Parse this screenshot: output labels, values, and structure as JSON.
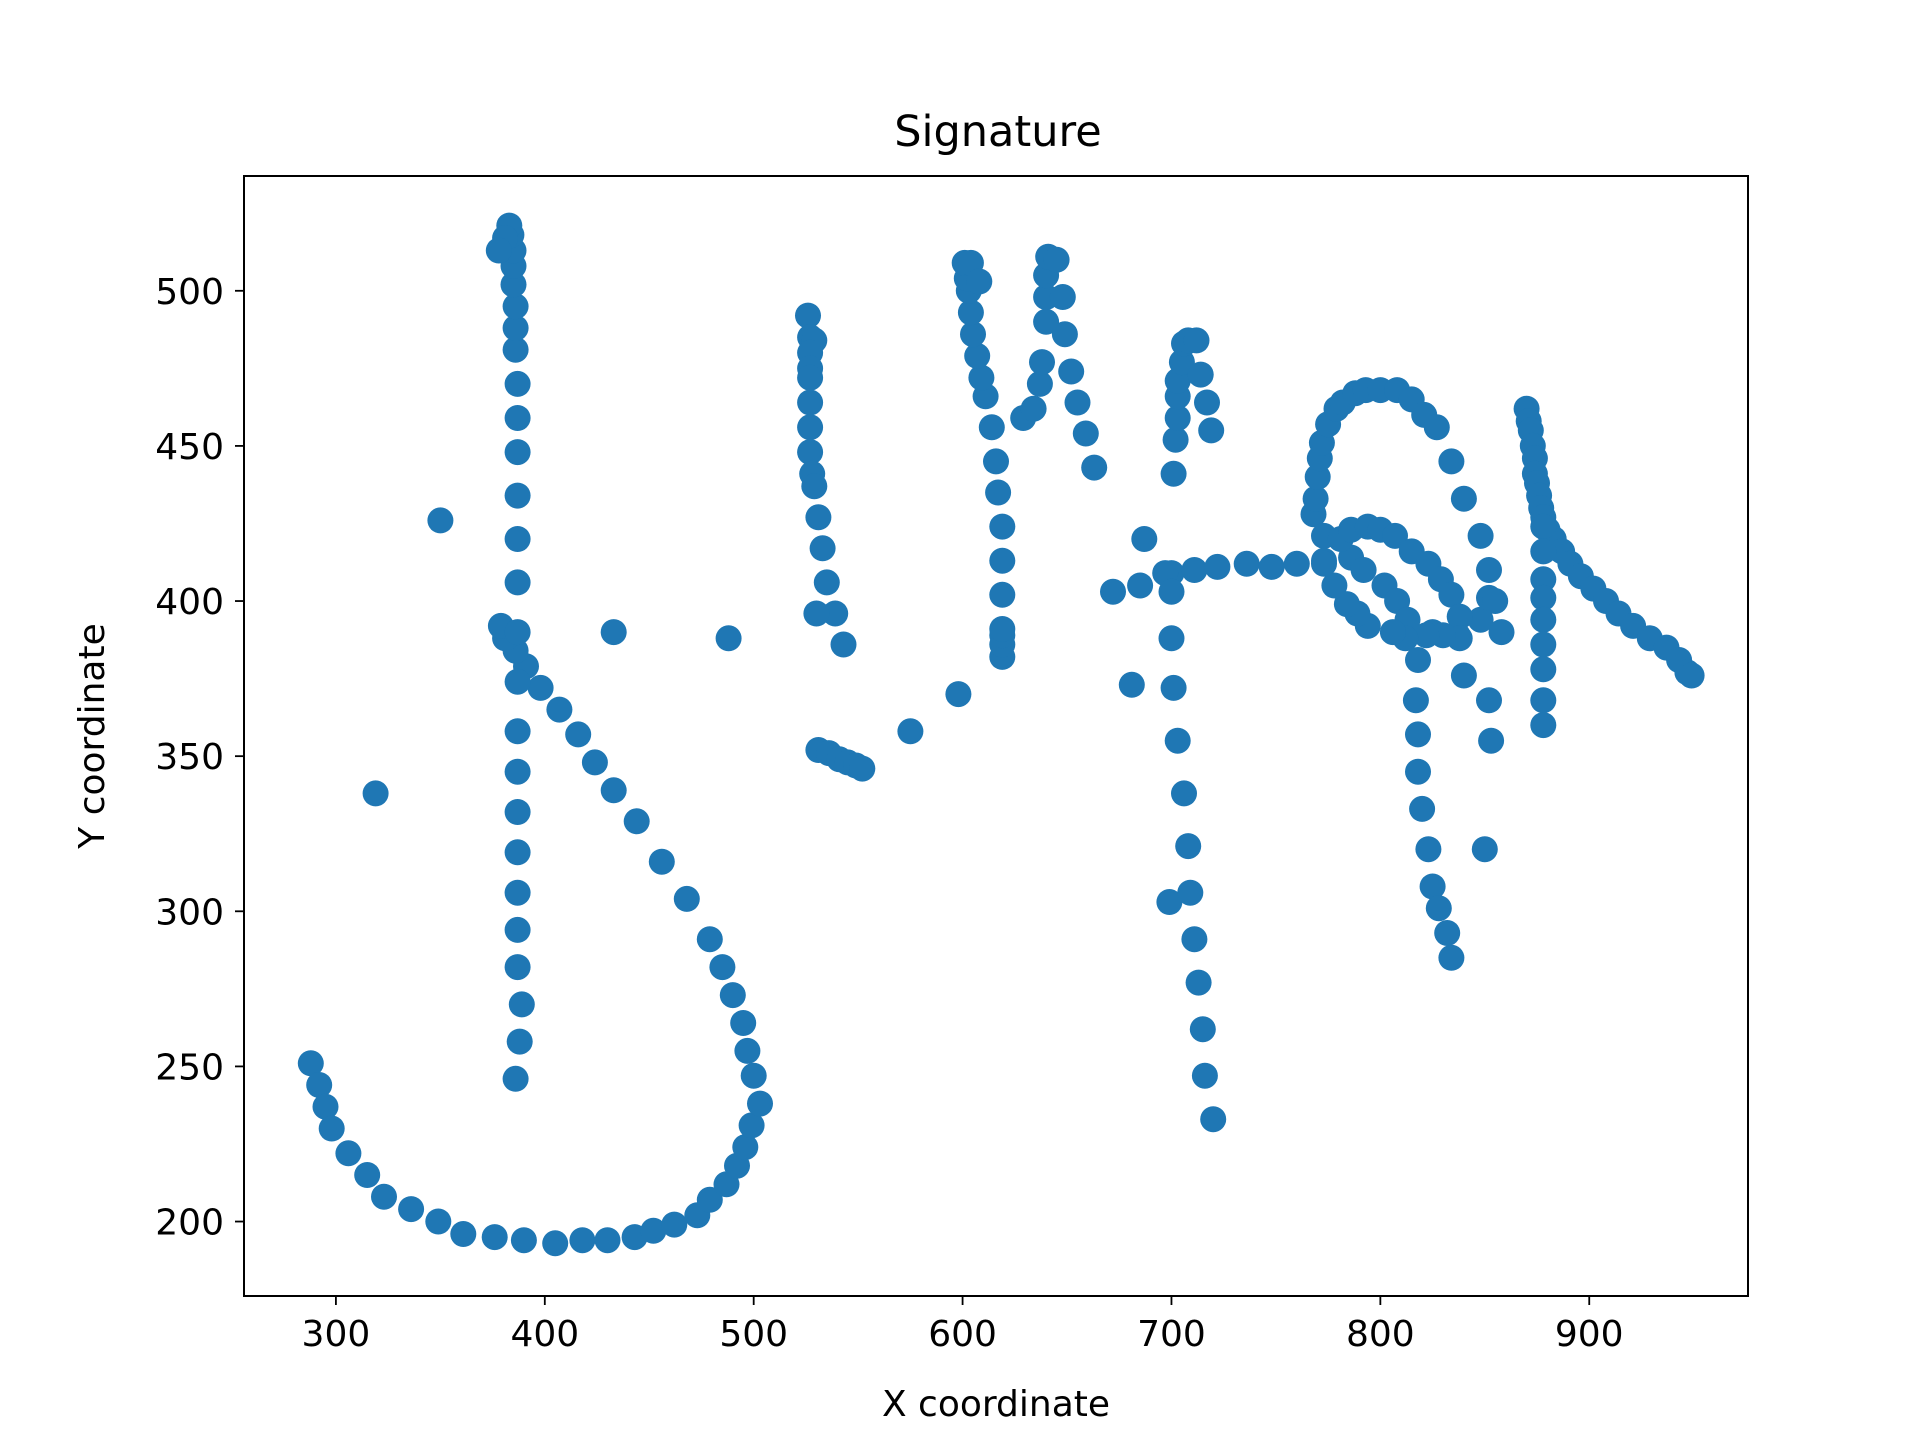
{
  "chart_data": {
    "type": "scatter",
    "title": "Signature",
    "xlabel": "X coordinate",
    "ylabel": "Y coordinate",
    "xlim": [
      256,
      976
    ],
    "ylim": [
      176,
      537
    ],
    "xticks": [
      300,
      400,
      500,
      600,
      700,
      800,
      900
    ],
    "yticks": [
      200,
      250,
      300,
      350,
      400,
      450,
      500
    ],
    "grid": false,
    "legend": "none",
    "marker_color": "#1f77b4",
    "series": [
      {
        "points": [
          [
            288,
            251
          ],
          [
            292,
            244
          ],
          [
            295,
            237
          ],
          [
            298,
            230
          ],
          [
            306,
            222
          ],
          [
            315,
            215
          ],
          [
            323,
            208
          ],
          [
            336,
            204
          ],
          [
            349,
            200
          ],
          [
            361,
            196
          ],
          [
            376,
            195
          ],
          [
            390,
            194
          ],
          [
            405,
            193
          ],
          [
            418,
            194
          ],
          [
            430,
            194
          ],
          [
            443,
            195
          ],
          [
            452,
            197
          ],
          [
            462,
            199
          ],
          [
            473,
            202
          ],
          [
            479,
            207
          ],
          [
            487,
            212
          ],
          [
            492,
            218
          ],
          [
            496,
            224
          ],
          [
            499,
            231
          ],
          [
            503,
            238
          ],
          [
            500,
            247
          ],
          [
            497,
            255
          ],
          [
            495,
            264
          ],
          [
            490,
            273
          ],
          [
            485,
            282
          ],
          [
            479,
            291
          ],
          [
            468,
            304
          ],
          [
            456,
            316
          ],
          [
            444,
            329
          ],
          [
            433,
            339
          ],
          [
            424,
            348
          ],
          [
            416,
            357
          ],
          [
            407,
            365
          ],
          [
            398,
            372
          ],
          [
            391,
            379
          ],
          [
            386,
            384
          ],
          [
            381,
            388
          ],
          [
            379,
            392
          ],
          [
            386,
            246
          ],
          [
            388,
            258
          ],
          [
            389,
            270
          ],
          [
            387,
            282
          ],
          [
            387,
            294
          ],
          [
            387,
            306
          ],
          [
            387,
            319
          ],
          [
            387,
            332
          ],
          [
            387,
            345
          ],
          [
            387,
            358
          ],
          [
            387,
            374
          ],
          [
            387,
            390
          ],
          [
            387,
            406
          ],
          [
            387,
            420
          ],
          [
            387,
            434
          ],
          [
            387,
            448
          ],
          [
            387,
            459
          ],
          [
            387,
            470
          ],
          [
            386,
            481
          ],
          [
            386,
            488
          ],
          [
            386,
            495
          ],
          [
            385,
            502
          ],
          [
            385,
            508
          ],
          [
            385,
            513
          ],
          [
            384,
            518
          ],
          [
            383,
            521
          ],
          [
            381,
            517
          ],
          [
            378,
            513
          ],
          [
            319,
            338
          ],
          [
            350,
            426
          ],
          [
            433,
            390
          ],
          [
            488,
            388
          ],
          [
            526,
            492
          ],
          [
            527,
            485
          ],
          [
            529,
            484
          ],
          [
            527,
            480
          ],
          [
            527,
            475
          ],
          [
            527,
            472
          ],
          [
            527,
            464
          ],
          [
            527,
            456
          ],
          [
            527,
            448
          ],
          [
            528,
            441
          ],
          [
            529,
            437
          ],
          [
            531,
            427
          ],
          [
            533,
            417
          ],
          [
            535,
            406
          ],
          [
            539,
            396
          ],
          [
            530,
            396
          ],
          [
            543,
            386
          ],
          [
            531,
            352
          ],
          [
            536,
            351
          ],
          [
            541,
            349
          ],
          [
            545,
            348
          ],
          [
            549,
            347
          ],
          [
            552,
            346
          ],
          [
            575,
            358
          ],
          [
            598,
            370
          ],
          [
            619,
            382
          ],
          [
            619,
            386
          ],
          [
            619,
            389
          ],
          [
            619,
            391
          ],
          [
            619,
            402
          ],
          [
            619,
            413
          ],
          [
            619,
            424
          ],
          [
            617,
            435
          ],
          [
            616,
            445
          ],
          [
            614,
            456
          ],
          [
            611,
            466
          ],
          [
            609,
            472
          ],
          [
            607,
            479
          ],
          [
            605,
            486
          ],
          [
            604,
            493
          ],
          [
            603,
            500
          ],
          [
            602,
            504
          ],
          [
            601,
            509
          ],
          [
            604,
            509
          ],
          [
            608,
            503
          ],
          [
            629,
            459
          ],
          [
            634,
            462
          ],
          [
            637,
            470
          ],
          [
            638,
            477
          ],
          [
            640,
            490
          ],
          [
            640,
            498
          ],
          [
            640,
            505
          ],
          [
            641,
            511
          ],
          [
            645,
            510
          ],
          [
            648,
            498
          ],
          [
            649,
            486
          ],
          [
            652,
            474
          ],
          [
            655,
            464
          ],
          [
            659,
            454
          ],
          [
            663,
            443
          ],
          [
            672,
            403
          ],
          [
            685,
            405
          ],
          [
            700,
            409
          ],
          [
            711,
            410
          ],
          [
            722,
            411
          ],
          [
            736,
            412
          ],
          [
            748,
            411
          ],
          [
            760,
            412
          ],
          [
            773,
            413
          ],
          [
            786,
            414
          ],
          [
            792,
            410
          ],
          [
            802,
            405
          ],
          [
            808,
            400
          ],
          [
            813,
            394
          ],
          [
            825,
            390
          ],
          [
            837,
            389
          ],
          [
            848,
            394
          ],
          [
            852,
            401
          ],
          [
            858,
            390
          ],
          [
            681,
            373
          ],
          [
            699,
            303
          ],
          [
            701,
            441
          ],
          [
            702,
            452
          ],
          [
            703,
            459
          ],
          [
            703,
            466
          ],
          [
            703,
            471
          ],
          [
            705,
            477
          ],
          [
            706,
            483
          ],
          [
            708,
            484
          ],
          [
            712,
            484
          ],
          [
            714,
            473
          ],
          [
            717,
            464
          ],
          [
            719,
            455
          ],
          [
            687,
            420
          ],
          [
            697,
            409
          ],
          [
            700,
            403
          ],
          [
            700,
            388
          ],
          [
            701,
            372
          ],
          [
            703,
            355
          ],
          [
            706,
            338
          ],
          [
            708,
            321
          ],
          [
            709,
            306
          ],
          [
            711,
            291
          ],
          [
            713,
            277
          ],
          [
            715,
            262
          ],
          [
            716,
            247
          ],
          [
            720,
            233
          ],
          [
            768,
            428
          ],
          [
            769,
            433
          ],
          [
            770,
            440
          ],
          [
            771,
            446
          ],
          [
            772,
            451
          ],
          [
            775,
            457
          ],
          [
            779,
            462
          ],
          [
            782,
            464
          ],
          [
            788,
            467
          ],
          [
            793,
            468
          ],
          [
            800,
            468
          ],
          [
            808,
            468
          ],
          [
            815,
            465
          ],
          [
            821,
            460
          ],
          [
            827,
            456
          ],
          [
            834,
            445
          ],
          [
            840,
            433
          ],
          [
            848,
            421
          ],
          [
            852,
            410
          ],
          [
            855,
            400
          ],
          [
            773,
            421
          ],
          [
            781,
            420
          ],
          [
            786,
            423
          ],
          [
            794,
            424
          ],
          [
            800,
            423
          ],
          [
            807,
            421
          ],
          [
            815,
            416
          ],
          [
            823,
            412
          ],
          [
            829,
            407
          ],
          [
            834,
            402
          ],
          [
            838,
            395
          ],
          [
            838,
            388
          ],
          [
            830,
            389
          ],
          [
            822,
            389
          ],
          [
            812,
            388
          ],
          [
            806,
            390
          ],
          [
            794,
            392
          ],
          [
            789,
            396
          ],
          [
            784,
            399
          ],
          [
            778,
            405
          ],
          [
            773,
            412
          ],
          [
            818,
            381
          ],
          [
            817,
            368
          ],
          [
            818,
            357
          ],
          [
            818,
            345
          ],
          [
            820,
            333
          ],
          [
            823,
            320
          ],
          [
            825,
            308
          ],
          [
            828,
            301
          ],
          [
            832,
            293
          ],
          [
            834,
            285
          ],
          [
            840,
            376
          ],
          [
            852,
            368
          ],
          [
            853,
            355
          ],
          [
            850,
            320
          ],
          [
            870,
            462
          ],
          [
            871,
            458
          ],
          [
            872,
            455
          ],
          [
            873,
            450
          ],
          [
            874,
            446
          ],
          [
            874,
            441
          ],
          [
            875,
            438
          ],
          [
            876,
            434
          ],
          [
            877,
            430
          ],
          [
            878,
            427
          ],
          [
            880,
            423
          ],
          [
            883,
            420
          ],
          [
            887,
            416
          ],
          [
            891,
            412
          ],
          [
            896,
            408
          ],
          [
            902,
            404
          ],
          [
            908,
            400
          ],
          [
            914,
            396
          ],
          [
            921,
            392
          ],
          [
            929,
            388
          ],
          [
            937,
            385
          ],
          [
            943,
            381
          ],
          [
            947,
            377
          ],
          [
            949,
            376
          ],
          [
            878,
            424
          ],
          [
            878,
            416
          ],
          [
            878,
            407
          ],
          [
            878,
            401
          ],
          [
            878,
            394
          ],
          [
            878,
            386
          ],
          [
            878,
            378
          ],
          [
            878,
            368
          ],
          [
            878,
            360
          ]
        ]
      }
    ]
  }
}
